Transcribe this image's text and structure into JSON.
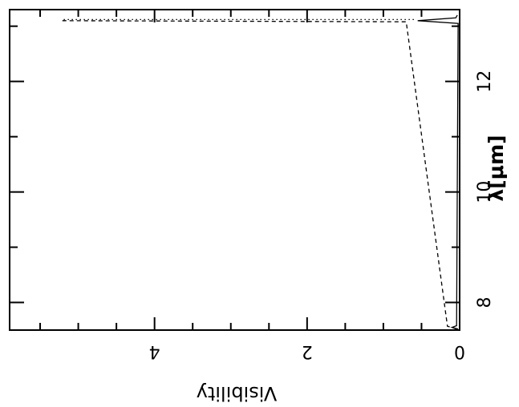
{
  "chart_data": {
    "type": "line",
    "orientation": "rotated-90",
    "xlabel": "λ[μm]",
    "ylabel": "Visibility",
    "xlim": [
      7.5,
      13.3
    ],
    "ylim": [
      0,
      5.9
    ],
    "x_ticks": [
      8,
      10,
      12
    ],
    "x_tick_labels": [
      "8",
      "10",
      "12"
    ],
    "y_ticks": [
      0,
      2,
      4
    ],
    "y_tick_labels": [
      "0",
      "2",
      "4"
    ],
    "grid": false,
    "series": [
      {
        "style": "solid",
        "points": [
          [
            7.52,
            0.02
          ],
          [
            7.55,
            0.1
          ],
          [
            7.58,
            0.04
          ],
          [
            13.05,
            0.02
          ],
          [
            13.1,
            0.55
          ],
          [
            13.15,
            0.05
          ],
          [
            13.2,
            0.03
          ]
        ]
      },
      {
        "style": "dashed",
        "points": [
          [
            7.52,
            0.04
          ],
          [
            7.57,
            0.16
          ],
          [
            13.08,
            0.7
          ],
          [
            13.1,
            5.25
          ]
        ]
      },
      {
        "style": "dotted",
        "points": [
          [
            13.12,
            0.6
          ],
          [
            13.12,
            5.2
          ]
        ]
      }
    ]
  }
}
